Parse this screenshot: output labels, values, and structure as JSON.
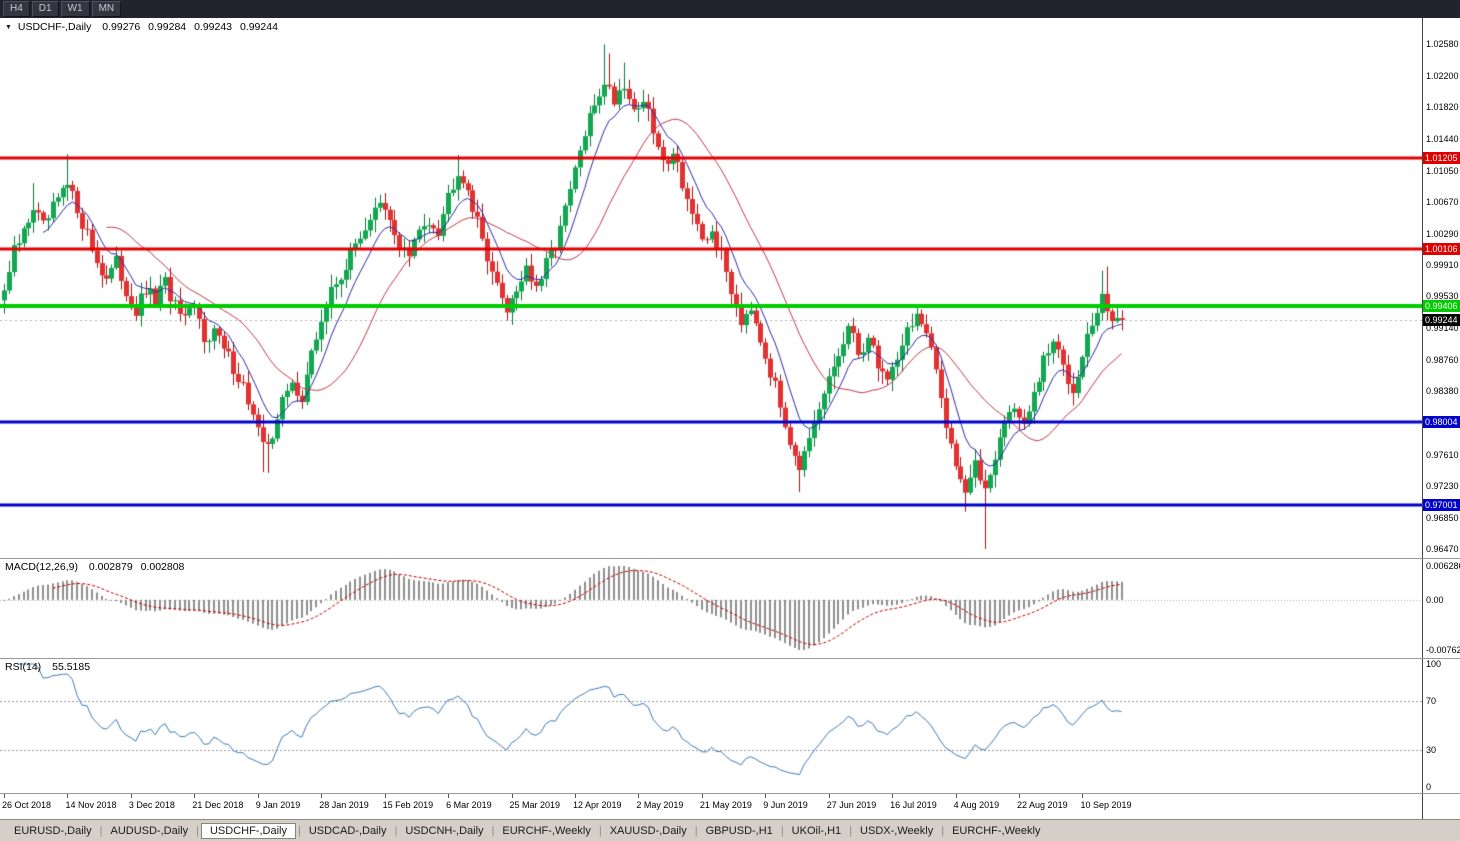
{
  "toolbar": {
    "timeframes": [
      "H4",
      "D1",
      "W1",
      "MN"
    ]
  },
  "chart_header": {
    "symbol": "USDCHF-,Daily",
    "open": "0.99276",
    "high": "0.99284",
    "low": "0.99243",
    "close": "0.99244"
  },
  "panels": {
    "macd": {
      "title": "MACD(12,26,9)",
      "value_main": "0.002879",
      "value_signal": "0.002808",
      "ticks": [
        "0.006286",
        "0.00",
        "-0.00762"
      ]
    },
    "rsi": {
      "title": "RSI(14)",
      "value": "55.5185",
      "ticks": [
        100,
        70,
        30,
        0
      ]
    }
  },
  "tabs": {
    "items": [
      "EURUSD-,Daily",
      "AUDUSD-,Daily",
      "USDCHF-,Daily",
      "USDCAD-,Daily",
      "USDCNH-,Daily",
      "EURCHF-,Weekly",
      "XAUUSD-,Daily",
      "GBPUSD-,H1",
      "UKOil-,H1",
      "USDX-,Weekly",
      "EURCHF-,Weekly"
    ],
    "active_index": 2
  },
  "chart_data": {
    "type": "candlestick",
    "title": "USDCHF-,Daily",
    "ylim": [
      0.9636,
      1.029
    ],
    "num_candles": 230,
    "candles_per_label": 13,
    "x_labels": [
      "26 Oct 2018",
      "14 Nov 2018",
      "3 Dec 2018",
      "21 Dec 2018",
      "9 Jan 2019",
      "28 Jan 2019",
      "15 Feb 2019",
      "6 Mar 2019",
      "25 Mar 2019",
      "12 Apr 2019",
      "2 May 2019",
      "21 May 2019",
      "9 Jun 2019",
      "27 Jun 2019",
      "16 Jul 2019",
      "4 Aug 2019",
      "22 Aug 2019",
      "10 Sep 2019"
    ],
    "y_ticks": [
      "1.02580",
      "1.02200",
      "1.01820",
      "1.01440",
      "1.01050",
      "1.00670",
      "1.00290",
      "0.99910",
      "0.99530",
      "0.99140",
      "0.98760",
      "0.98380",
      "0.97610",
      "0.97230",
      "0.96850",
      "0.96470"
    ],
    "levels": [
      {
        "value": 1.01205,
        "label": "1.01205",
        "color": "#e00000",
        "width": 3
      },
      {
        "value": 1.00106,
        "label": "1.00106",
        "color": "#e00000",
        "width": 3
      },
      {
        "value": 0.99406,
        "label": "0.99406",
        "color": "#00cd00",
        "width": 4
      },
      {
        "value": 0.98004,
        "label": "0.98004",
        "color": "#0000cc",
        "width": 3
      },
      {
        "value": 0.97001,
        "label": "0.97001",
        "color": "#0000cc",
        "width": 3
      }
    ],
    "current_price": 0.99244,
    "current_price_label": "0.99244",
    "colors": {
      "up": "#12a851",
      "up_border": "#077a38",
      "down": "#e23131",
      "down_border": "#a81414",
      "ma_fast": "#2c2ca8",
      "ma_slow": "#c23a4a",
      "macd_hist": "#8f8f8f",
      "macd_signal": "#c00000",
      "rsi_line": "#3f7cba",
      "level_guide": "#b5b5b5"
    },
    "ma": [
      {
        "kind": "ema",
        "period": 8
      },
      {
        "kind": "sma",
        "period": 21
      }
    ],
    "macd": {
      "fast": 12,
      "slow": 26,
      "signal": 9
    },
    "rsi": {
      "period": 14,
      "guides": [
        70,
        30
      ]
    },
    "close_keyframes": [
      [
        0,
        0.996
      ],
      [
        2,
        1.0005
      ],
      [
        4,
        1.003
      ],
      [
        6,
        1.0062
      ],
      [
        8,
        1.0035
      ],
      [
        10,
        1.0058
      ],
      [
        12,
        1.0078
      ],
      [
        13,
        1.0085
      ],
      [
        15,
        1.006
      ],
      [
        17,
        1.0028
      ],
      [
        19,
        0.9995
      ],
      [
        21,
        0.9975
      ],
      [
        23,
        0.9992
      ],
      [
        25,
        0.996
      ],
      [
        27,
        0.9935
      ],
      [
        29,
        0.9958
      ],
      [
        31,
        0.9948
      ],
      [
        33,
        0.9968
      ],
      [
        35,
        0.994
      ],
      [
        37,
        0.992
      ],
      [
        39,
        0.9938
      ],
      [
        41,
        0.9905
      ],
      [
        43,
        0.9912
      ],
      [
        45,
        0.9888
      ],
      [
        47,
        0.9868
      ],
      [
        49,
        0.9845
      ],
      [
        51,
        0.9808
      ],
      [
        53,
        0.9768
      ],
      [
        55,
        0.9788
      ],
      [
        57,
        0.9825
      ],
      [
        59,
        0.9846
      ],
      [
        61,
        0.9832
      ],
      [
        63,
        0.988
      ],
      [
        65,
        0.9925
      ],
      [
        67,
        0.9958
      ],
      [
        69,
        0.998
      ],
      [
        71,
        1.0002
      ],
      [
        73,
        1.0028
      ],
      [
        75,
        1.0048
      ],
      [
        77,
        1.0062
      ],
      [
        79,
        1.0042
      ],
      [
        81,
        1.0015
      ],
      [
        83,
        1.0002
      ],
      [
        85,
        1.003
      ],
      [
        87,
        1.0048
      ],
      [
        89,
        1.0035
      ],
      [
        91,
        1.0075
      ],
      [
        93,
        1.0108
      ],
      [
        95,
        1.0085
      ],
      [
        97,
        1.004
      ],
      [
        99,
        1.0005
      ],
      [
        101,
        0.9962
      ],
      [
        103,
        0.994
      ],
      [
        105,
        0.9962
      ],
      [
        107,
        0.999
      ],
      [
        109,
        0.9958
      ],
      [
        111,
        0.999
      ],
      [
        113,
        1.0018
      ],
      [
        115,
        1.0055
      ],
      [
        117,
        1.0105
      ],
      [
        119,
        1.0148
      ],
      [
        121,
        1.0185
      ],
      [
        123,
        1.0215
      ],
      [
        125,
        1.0192
      ],
      [
        127,
        1.0212
      ],
      [
        129,
        1.0178
      ],
      [
        131,
        1.0192
      ],
      [
        133,
        1.0152
      ],
      [
        135,
        1.0112
      ],
      [
        137,
        1.0132
      ],
      [
        139,
        1.0092
      ],
      [
        141,
        1.0052
      ],
      [
        143,
        1.0012
      ],
      [
        145,
        1.0032
      ],
      [
        147,
        1.0002
      ],
      [
        149,
        0.9962
      ],
      [
        151,
        0.9925
      ],
      [
        153,
        0.9945
      ],
      [
        155,
        0.9905
      ],
      [
        157,
        0.9862
      ],
      [
        159,
        0.982
      ],
      [
        161,
        0.9782
      ],
      [
        163,
        0.9748
      ],
      [
        165,
        0.9772
      ],
      [
        167,
        0.9812
      ],
      [
        169,
        0.9852
      ],
      [
        171,
        0.9882
      ],
      [
        173,
        0.9912
      ],
      [
        175,
        0.9885
      ],
      [
        177,
        0.9902
      ],
      [
        179,
        0.9872
      ],
      [
        181,
        0.9852
      ],
      [
        183,
        0.9882
      ],
      [
        185,
        0.9912
      ],
      [
        187,
        0.9932
      ],
      [
        189,
        0.9902
      ],
      [
        191,
        0.9862
      ],
      [
        193,
        0.9802
      ],
      [
        195,
        0.9752
      ],
      [
        197,
        0.9718
      ],
      [
        199,
        0.9745
      ],
      [
        201,
        0.9722
      ],
      [
        203,
        0.9762
      ],
      [
        205,
        0.9802
      ],
      [
        207,
        0.9822
      ],
      [
        209,
        0.9792
      ],
      [
        211,
        0.9832
      ],
      [
        213,
        0.9872
      ],
      [
        215,
        0.9898
      ],
      [
        217,
        0.9868
      ],
      [
        219,
        0.9842
      ],
      [
        221,
        0.9888
      ],
      [
        223,
        0.9918
      ],
      [
        225,
        0.9948
      ],
      [
        227,
        0.9928
      ],
      [
        229,
        0.99244
      ]
    ],
    "wick_overrides": [
      [
        6,
        "h",
        1.009
      ],
      [
        13,
        "h",
        1.0125
      ],
      [
        53,
        "l",
        0.974
      ],
      [
        54,
        "l",
        0.9739
      ],
      [
        93,
        "h",
        1.0124
      ],
      [
        123,
        "h",
        1.0258
      ],
      [
        124,
        "h",
        1.0247
      ],
      [
        127,
        "h",
        1.0236
      ],
      [
        163,
        "l",
        0.9716
      ],
      [
        197,
        "l",
        0.9692
      ],
      [
        201,
        "l",
        0.9647
      ],
      [
        225,
        "h",
        0.9984
      ],
      [
        226,
        "h",
        0.9989
      ]
    ]
  }
}
